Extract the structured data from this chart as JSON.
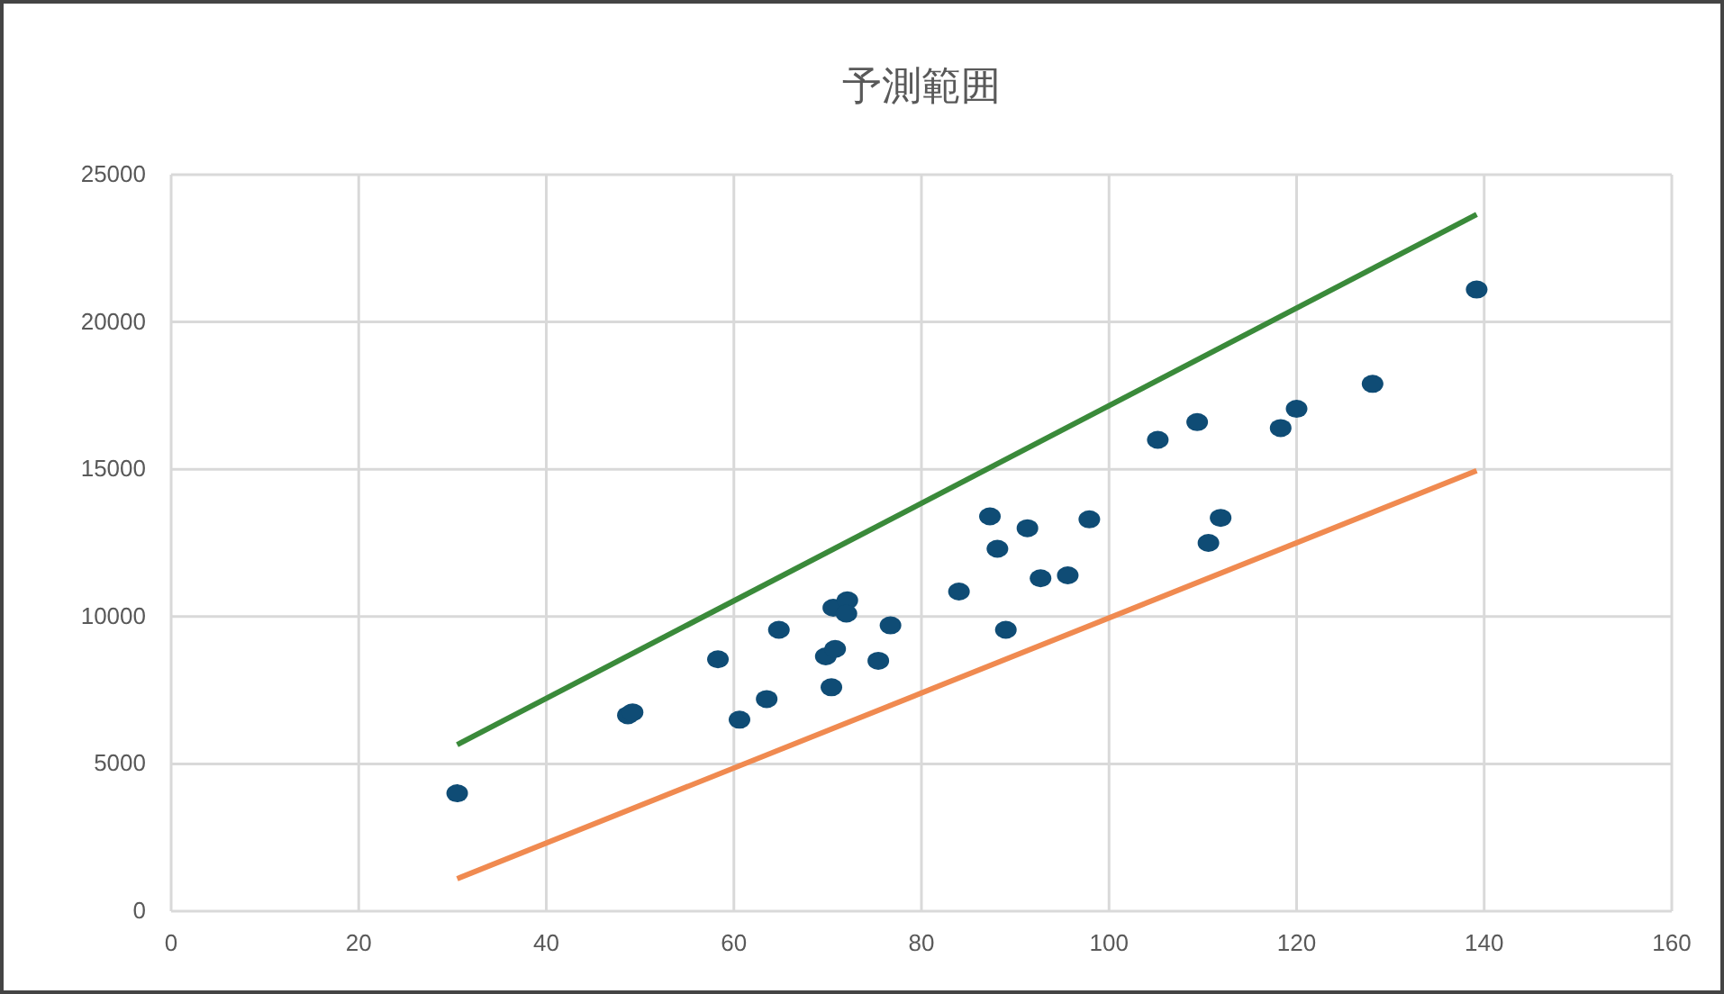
{
  "chart_data": {
    "type": "scatter",
    "title": "予測範囲",
    "xlim": [
      0,
      160
    ],
    "xticks": [
      0,
      20,
      40,
      60,
      80,
      100,
      120,
      140,
      160
    ],
    "ylim": [
      0,
      25000
    ],
    "yticks": [
      0,
      5000,
      10000,
      15000,
      20000,
      25000
    ],
    "grid": true,
    "series": [
      {
        "marker": "circle",
        "color": "#0f4c75",
        "x": [
          30.5,
          48.7,
          49.2,
          58.3,
          60.6,
          63.5,
          64.8,
          70.4,
          69.8,
          70.8,
          70.6,
          72.1,
          72,
          75.4,
          76.7,
          84,
          87.3,
          88.1,
          89,
          91.3,
          92.7,
          95.6,
          97.9,
          105.2,
          109.4,
          110.6,
          111.9,
          118.3,
          120,
          128.1,
          139.2
        ],
        "values": [
          4000,
          6650,
          6750,
          8550,
          6500,
          7200,
          9550,
          7600,
          8650,
          8900,
          10300,
          10550,
          10100,
          8500,
          9700,
          10850,
          13400,
          12300,
          9550,
          13000,
          11300,
          11400,
          13300,
          16000,
          16600,
          12500,
          13350,
          16400,
          17050,
          17900,
          21100
        ]
      },
      {
        "type": "line",
        "color": "#3a8a3a",
        "x": [
          30.5,
          139.2
        ],
        "values": [
          5650,
          23650
        ]
      },
      {
        "type": "line",
        "color": "#f08a50",
        "x": [
          30.5,
          139.2
        ],
        "values": [
          1100,
          14950
        ]
      }
    ]
  }
}
